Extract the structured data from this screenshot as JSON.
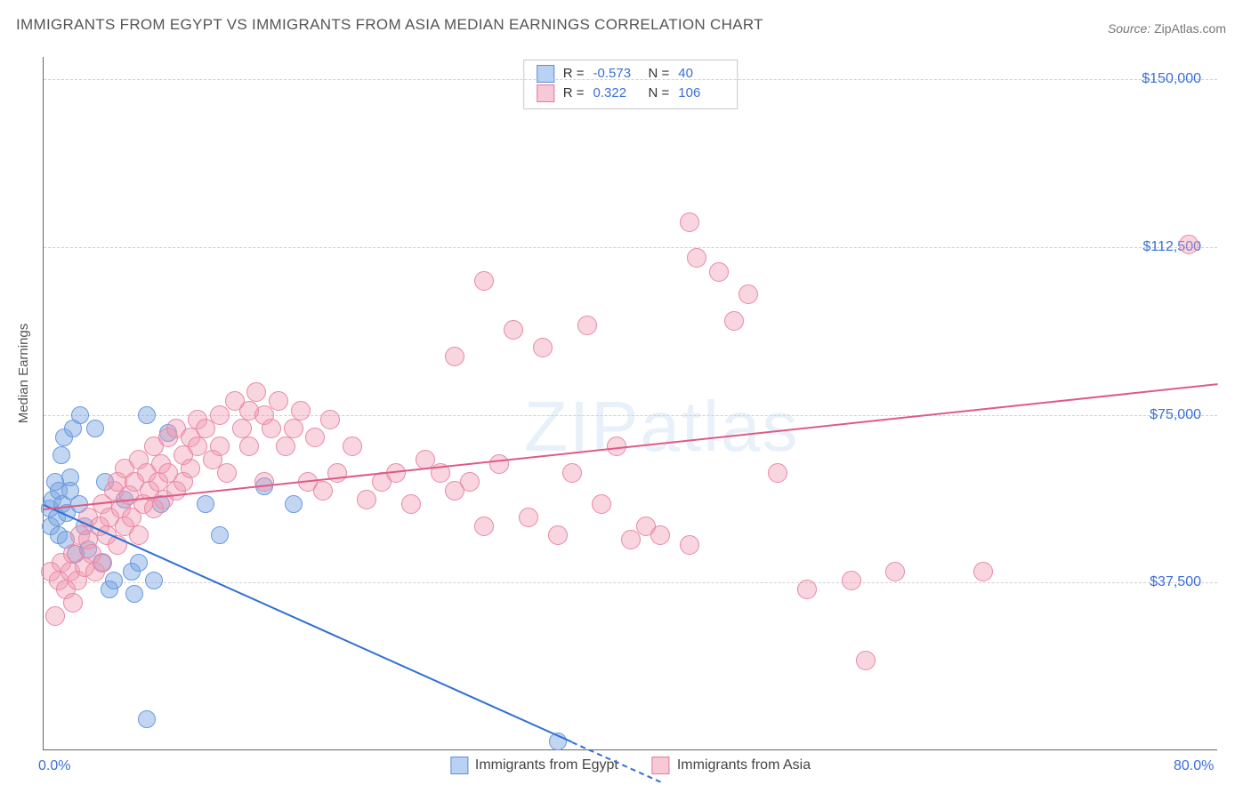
{
  "title": "IMMIGRANTS FROM EGYPT VS IMMIGRANTS FROM ASIA MEDIAN EARNINGS CORRELATION CHART",
  "source_label": "Source:",
  "source_value": "ZipAtlas.com",
  "watermark": "ZIPatlas",
  "y_axis_title": "Median Earnings",
  "chart": {
    "type": "scatter",
    "xlim": [
      0,
      80
    ],
    "ylim": [
      0,
      155000
    ],
    "x_ticks": [
      {
        "v": 0,
        "label": "0.0%"
      },
      {
        "v": 80,
        "label": "80.0%"
      }
    ],
    "y_ticks": [
      {
        "v": 37500,
        "label": "$37,500"
      },
      {
        "v": 75000,
        "label": "$75,000"
      },
      {
        "v": 112500,
        "label": "$112,500"
      },
      {
        "v": 150000,
        "label": "$150,000"
      }
    ],
    "grid_color": "#d0d0d0",
    "background_color": "#ffffff",
    "series": [
      {
        "name": "Immigrants from Egypt",
        "color_fill": "rgba(120,165,225,0.45)",
        "color_stroke": "#6a9ade",
        "swatch_fill": "#b9d1f2",
        "swatch_stroke": "#5d8fd7",
        "R": "-0.573",
        "N": "40",
        "marker_radius": 9,
        "trend": {
          "x1": 0,
          "y1": 55000,
          "x2": 36,
          "y2": 2000,
          "color": "#2f6fd4",
          "width": 2,
          "dash_after_x": 36,
          "dash_to_x": 42
        },
        "points": [
          [
            0.4,
            54000
          ],
          [
            0.5,
            50000
          ],
          [
            0.6,
            56000
          ],
          [
            0.8,
            60000
          ],
          [
            0.9,
            52000
          ],
          [
            1.0,
            58000
          ],
          [
            1.0,
            48000
          ],
          [
            1.2,
            66000
          ],
          [
            1.3,
            55000
          ],
          [
            1.4,
            70000
          ],
          [
            1.5,
            47000
          ],
          [
            1.6,
            53000
          ],
          [
            1.8,
            61000
          ],
          [
            1.8,
            58000
          ],
          [
            2.0,
            72000
          ],
          [
            2.2,
            44000
          ],
          [
            2.4,
            55000
          ],
          [
            2.5,
            75000
          ],
          [
            2.8,
            50000
          ],
          [
            3.0,
            45000
          ],
          [
            3.5,
            72000
          ],
          [
            4.0,
            42000
          ],
          [
            4.2,
            60000
          ],
          [
            4.5,
            36000
          ],
          [
            4.8,
            38000
          ],
          [
            5.5,
            56000
          ],
          [
            6.0,
            40000
          ],
          [
            6.2,
            35000
          ],
          [
            6.5,
            42000
          ],
          [
            7.0,
            75000
          ],
          [
            7.5,
            38000
          ],
          [
            8.0,
            55000
          ],
          [
            8.5,
            71000
          ],
          [
            11.0,
            55000
          ],
          [
            12.0,
            48000
          ],
          [
            15.0,
            59000
          ],
          [
            17.0,
            55000
          ],
          [
            7.0,
            7000
          ],
          [
            35.0,
            2000
          ]
        ]
      },
      {
        "name": "Immigrants from Asia",
        "color_fill": "rgba(240,150,175,0.40)",
        "color_stroke": "#e889a6",
        "swatch_fill": "#f7c8d5",
        "swatch_stroke": "#e27a9a",
        "R": "0.322",
        "N": "106",
        "marker_radius": 10,
        "trend": {
          "x1": 0,
          "y1": 54000,
          "x2": 80,
          "y2": 82000,
          "color": "#e05a86",
          "width": 2
        },
        "points": [
          [
            0.5,
            40000
          ],
          [
            0.8,
            30000
          ],
          [
            1.0,
            38000
          ],
          [
            1.2,
            42000
          ],
          [
            1.5,
            36000
          ],
          [
            1.8,
            40000
          ],
          [
            2.0,
            33000
          ],
          [
            2.0,
            44000
          ],
          [
            2.3,
            38000
          ],
          [
            2.5,
            48000
          ],
          [
            2.8,
            41000
          ],
          [
            3.0,
            47000
          ],
          [
            3.0,
            52000
          ],
          [
            3.3,
            44000
          ],
          [
            3.5,
            40000
          ],
          [
            3.8,
            50000
          ],
          [
            4.0,
            42000
          ],
          [
            4.0,
            55000
          ],
          [
            4.3,
            48000
          ],
          [
            4.5,
            52000
          ],
          [
            4.8,
            58000
          ],
          [
            5.0,
            46000
          ],
          [
            5.0,
            60000
          ],
          [
            5.3,
            54000
          ],
          [
            5.5,
            50000
          ],
          [
            5.5,
            63000
          ],
          [
            5.8,
            57000
          ],
          [
            6.0,
            52000
          ],
          [
            6.2,
            60000
          ],
          [
            6.5,
            48000
          ],
          [
            6.5,
            65000
          ],
          [
            6.8,
            55000
          ],
          [
            7.0,
            62000
          ],
          [
            7.2,
            58000
          ],
          [
            7.5,
            54000
          ],
          [
            7.5,
            68000
          ],
          [
            7.8,
            60000
          ],
          [
            8.0,
            64000
          ],
          [
            8.2,
            56000
          ],
          [
            8.5,
            70000
          ],
          [
            8.5,
            62000
          ],
          [
            9.0,
            58000
          ],
          [
            9.0,
            72000
          ],
          [
            9.5,
            66000
          ],
          [
            9.5,
            60000
          ],
          [
            10.0,
            70000
          ],
          [
            10.0,
            63000
          ],
          [
            10.5,
            68000
          ],
          [
            10.5,
            74000
          ],
          [
            11.0,
            72000
          ],
          [
            11.5,
            65000
          ],
          [
            12.0,
            75000
          ],
          [
            12.0,
            68000
          ],
          [
            12.5,
            62000
          ],
          [
            13.0,
            78000
          ],
          [
            13.5,
            72000
          ],
          [
            14.0,
            76000
          ],
          [
            14.0,
            68000
          ],
          [
            14.5,
            80000
          ],
          [
            15.0,
            60000
          ],
          [
            15.0,
            75000
          ],
          [
            15.5,
            72000
          ],
          [
            16.0,
            78000
          ],
          [
            16.5,
            68000
          ],
          [
            17.0,
            72000
          ],
          [
            17.5,
            76000
          ],
          [
            18.0,
            60000
          ],
          [
            18.5,
            70000
          ],
          [
            19.0,
            58000
          ],
          [
            19.5,
            74000
          ],
          [
            20.0,
            62000
          ],
          [
            21.0,
            68000
          ],
          [
            22.0,
            56000
          ],
          [
            23.0,
            60000
          ],
          [
            24.0,
            62000
          ],
          [
            25.0,
            55000
          ],
          [
            26.0,
            65000
          ],
          [
            27.0,
            62000
          ],
          [
            28.0,
            88000
          ],
          [
            28.0,
            58000
          ],
          [
            29.0,
            60000
          ],
          [
            30.0,
            105000
          ],
          [
            30.0,
            50000
          ],
          [
            31.0,
            64000
          ],
          [
            32.0,
            94000
          ],
          [
            33.0,
            52000
          ],
          [
            34.0,
            90000
          ],
          [
            35.0,
            48000
          ],
          [
            36.0,
            62000
          ],
          [
            37.0,
            95000
          ],
          [
            38.0,
            55000
          ],
          [
            39.0,
            68000
          ],
          [
            40.0,
            47000
          ],
          [
            41.0,
            50000
          ],
          [
            42.0,
            48000
          ],
          [
            44.0,
            118000
          ],
          [
            44.5,
            110000
          ],
          [
            44.0,
            46000
          ],
          [
            46.0,
            107000
          ],
          [
            47.0,
            96000
          ],
          [
            48.0,
            102000
          ],
          [
            50.0,
            62000
          ],
          [
            52.0,
            36000
          ],
          [
            55.0,
            38000
          ],
          [
            56.0,
            20000
          ],
          [
            58.0,
            40000
          ],
          [
            64.0,
            40000
          ],
          [
            78.0,
            113000
          ]
        ]
      }
    ]
  },
  "bottom_legend": [
    {
      "label": "Immigrants from Egypt"
    },
    {
      "label": "Immigrants from Asia"
    }
  ]
}
